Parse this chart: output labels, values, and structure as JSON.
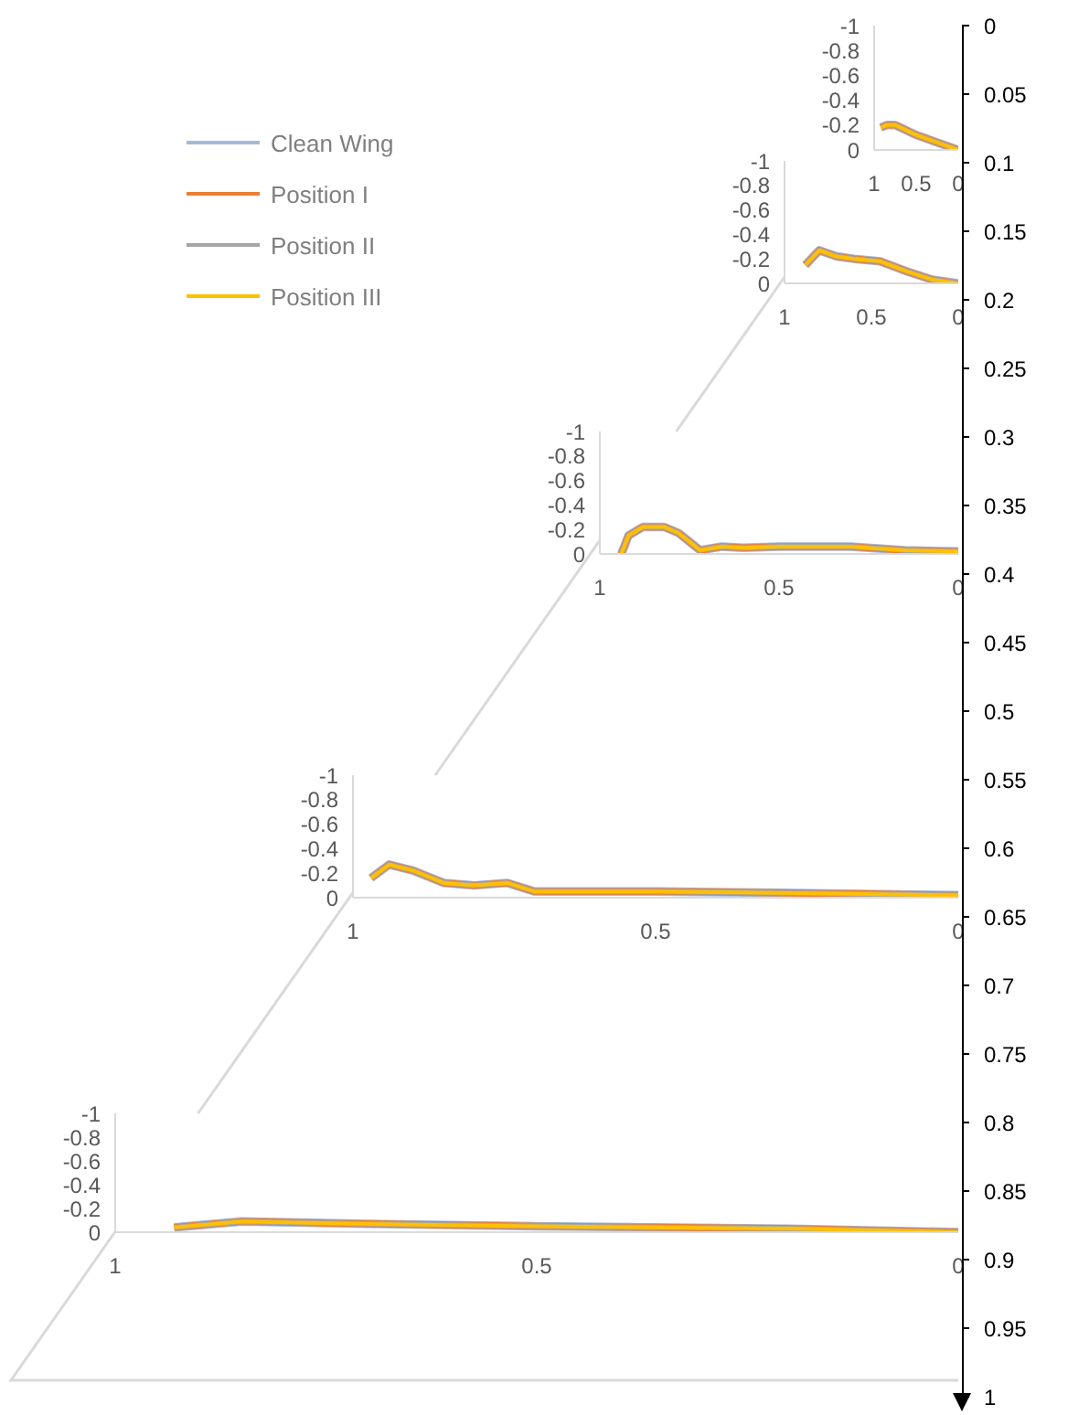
{
  "chart_data": [
    {
      "type": "line",
      "legend": "bottom left",
      "y2lim": [
        1,
        0
      ],
      "y2ticks": [
        0,
        0.05,
        0.1,
        0.15,
        0.2,
        0.25,
        0.3,
        0.35,
        0.4,
        0.45,
        0.5,
        0.55,
        0.6,
        0.65,
        0.7,
        0.75,
        0.8,
        0.85,
        0.9,
        0.95,
        1
      ],
      "xlim": [
        1,
        0
      ],
      "xticks": [
        1,
        0.5,
        0
      ],
      "ylim": [
        0,
        -1
      ],
      "yticks": [
        0,
        -0.2,
        -0.4,
        -0.6,
        -0.8,
        -1
      ],
      "x": [
        0.92,
        0.85,
        0.75,
        0.5,
        0.25,
        0
      ],
      "series": [
        {
          "name": "Clean Wing",
          "color": "#a5b8dc",
          "values": [
            -0.18,
            -0.2,
            -0.2,
            -0.12,
            -0.06,
            0
          ]
        },
        {
          "name": "Position I",
          "color": "#ed7d31",
          "values": [
            -0.18,
            -0.2,
            -0.2,
            -0.12,
            -0.06,
            0
          ]
        },
        {
          "name": "Position II",
          "color": "#a5a5a5",
          "values": [
            -0.18,
            -0.2,
            -0.2,
            -0.12,
            -0.06,
            0
          ]
        },
        {
          "name": "Position III",
          "color": "#ffc000",
          "values": [
            -0.18,
            -0.2,
            -0.2,
            -0.12,
            -0.06,
            0
          ]
        }
      ]
    },
    {
      "type": "line",
      "xlim": [
        1,
        0
      ],
      "xticks": [
        1,
        0.5,
        0
      ],
      "ylim": [
        0,
        -1
      ],
      "yticks": [
        0,
        -0.2,
        -0.4,
        -0.6,
        -0.8,
        -1
      ],
      "x": [
        0.88,
        0.8,
        0.7,
        0.6,
        0.45,
        0.3,
        0.15,
        0
      ],
      "series": [
        {
          "color": "#a5b8dc",
          "values": [
            -0.15,
            -0.27,
            -0.22,
            -0.2,
            -0.18,
            -0.1,
            -0.03,
            0
          ]
        },
        {
          "color": "#ed7d31",
          "values": [
            -0.15,
            -0.27,
            -0.22,
            -0.2,
            -0.18,
            -0.1,
            -0.03,
            0
          ]
        },
        {
          "color": "#a5a5a5",
          "values": [
            -0.15,
            -0.27,
            -0.22,
            -0.2,
            -0.18,
            -0.1,
            -0.03,
            0
          ]
        },
        {
          "color": "#ffc000",
          "values": [
            -0.15,
            -0.27,
            -0.22,
            -0.2,
            -0.18,
            -0.1,
            -0.03,
            0
          ]
        }
      ]
    },
    {
      "type": "line",
      "xlim": [
        1,
        0
      ],
      "xticks": [
        1,
        0.5,
        0
      ],
      "ylim": [
        0,
        -1
      ],
      "yticks": [
        0,
        -0.2,
        -0.4,
        -0.6,
        -0.8,
        -1
      ],
      "x": [
        0.94,
        0.92,
        0.88,
        0.82,
        0.78,
        0.72,
        0.66,
        0.6,
        0.5,
        0.3,
        0.15,
        0
      ],
      "series": [
        {
          "color": "#a5b8dc",
          "values": [
            0,
            -0.15,
            -0.22,
            -0.22,
            -0.17,
            -0.03,
            -0.06,
            -0.05,
            -0.06,
            -0.06,
            -0.03,
            -0.02
          ]
        },
        {
          "color": "#ed7d31",
          "values": [
            0,
            -0.15,
            -0.22,
            -0.22,
            -0.17,
            -0.03,
            -0.06,
            -0.05,
            -0.06,
            -0.06,
            -0.03,
            -0.02
          ]
        },
        {
          "color": "#a5a5a5",
          "values": [
            0,
            -0.15,
            -0.22,
            -0.22,
            -0.17,
            -0.03,
            -0.06,
            -0.05,
            -0.06,
            -0.06,
            -0.03,
            -0.02
          ]
        },
        {
          "color": "#ffc000",
          "values": [
            0,
            -0.15,
            -0.22,
            -0.22,
            -0.17,
            -0.03,
            -0.06,
            -0.05,
            -0.06,
            -0.06,
            -0.03,
            -0.02
          ]
        }
      ]
    },
    {
      "type": "line",
      "xlim": [
        1,
        0
      ],
      "xticks": [
        1,
        0.5,
        0
      ],
      "ylim": [
        0,
        -1
      ],
      "yticks": [
        0,
        -0.2,
        -0.4,
        -0.6,
        -0.8,
        -1
      ],
      "x": [
        0.97,
        0.94,
        0.9,
        0.85,
        0.8,
        0.745,
        0.7,
        0.5,
        0.3,
        0
      ],
      "series": [
        {
          "color": "#a5b8dc",
          "values": [
            -0.16,
            -0.27,
            -0.22,
            -0.12,
            -0.1,
            -0.12,
            -0.05,
            -0.05,
            -0.04,
            -0.02
          ]
        },
        {
          "color": "#ed7d31",
          "values": [
            -0.16,
            -0.27,
            -0.22,
            -0.12,
            -0.1,
            -0.12,
            -0.05,
            -0.05,
            -0.04,
            -0.02
          ]
        },
        {
          "color": "#a5a5a5",
          "values": [
            -0.16,
            -0.27,
            -0.22,
            -0.12,
            -0.1,
            -0.12,
            -0.05,
            -0.05,
            -0.04,
            -0.02
          ]
        },
        {
          "color": "#ffc000",
          "values": [
            -0.16,
            -0.27,
            -0.22,
            -0.12,
            -0.1,
            -0.12,
            -0.05,
            -0.05,
            -0.04,
            -0.02
          ]
        }
      ]
    },
    {
      "type": "line",
      "xlim": [
        1,
        0
      ],
      "xticks": [
        1,
        0.5,
        0
      ],
      "ylim": [
        0,
        -1
      ],
      "yticks": [
        0,
        -0.2,
        -0.4,
        -0.6,
        -0.8,
        -1
      ],
      "x": [
        0.93,
        0.85,
        0.7,
        0.5,
        0.2,
        0
      ],
      "series": [
        {
          "color": "#a5b8dc",
          "values": [
            -0.04,
            -0.09,
            -0.07,
            -0.05,
            -0.03,
            0
          ]
        },
        {
          "color": "#ed7d31",
          "values": [
            -0.04,
            -0.09,
            -0.07,
            -0.05,
            -0.03,
            0
          ]
        },
        {
          "color": "#a5a5a5",
          "values": [
            -0.04,
            -0.09,
            -0.07,
            -0.05,
            -0.03,
            0
          ]
        },
        {
          "color": "#ffc000",
          "values": [
            -0.04,
            -0.09,
            -0.07,
            -0.05,
            -0.03,
            0
          ]
        }
      ]
    }
  ]
}
